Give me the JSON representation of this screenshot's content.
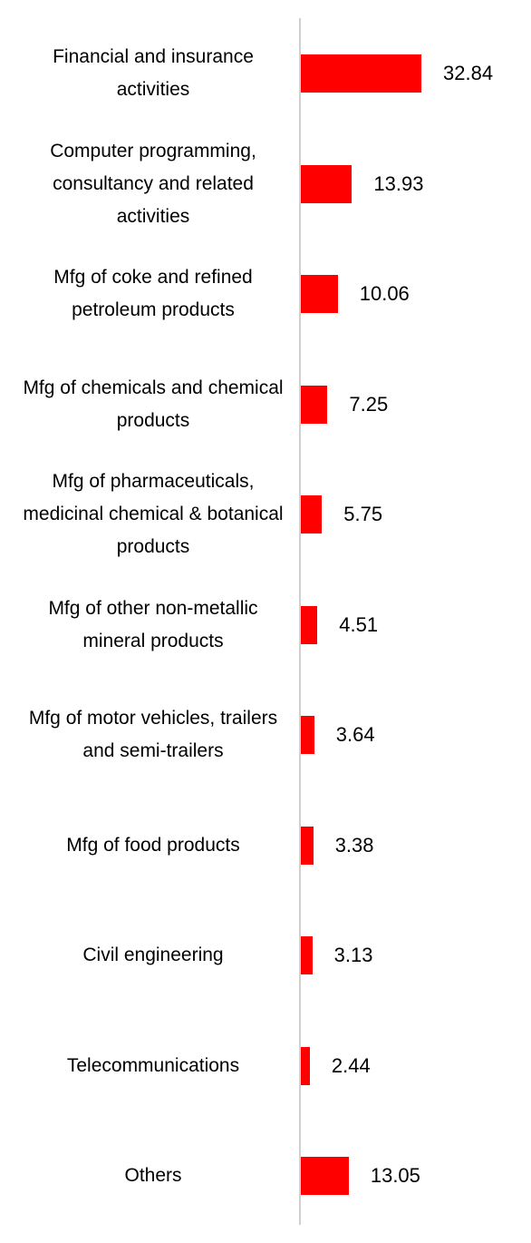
{
  "chart_data": {
    "type": "bar",
    "orientation": "horizontal",
    "color": "#ff0000",
    "categories": [
      "Financial and insurance activities",
      "Computer programming, consultancy and related activities",
      "Mfg of coke and refined petroleum products",
      "Mfg of chemicals and chemical products",
      "Mfg of pharmaceuticals, medicinal chemical & botanical products",
      "Mfg of other non-metallic mineral products",
      "Mfg of motor vehicles, trailers and semi-trailers",
      "Mfg of food products",
      "Civil engineering",
      "Telecommunications",
      "Others"
    ],
    "values": [
      32.84,
      13.93,
      10.06,
      7.25,
      5.75,
      4.51,
      3.64,
      3.38,
      3.13,
      2.44,
      13.05
    ]
  }
}
